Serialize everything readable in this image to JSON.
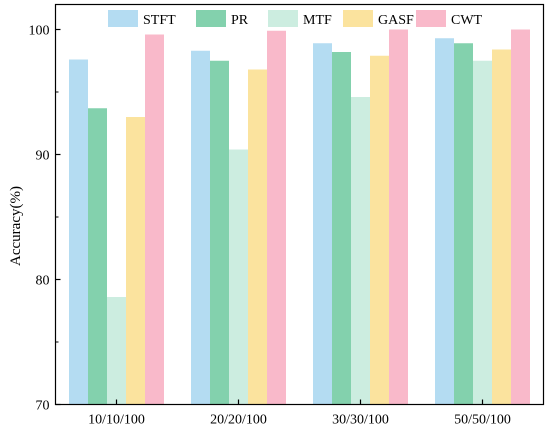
{
  "chart_data": {
    "type": "bar",
    "title": "",
    "xlabel": "",
    "ylabel": "Accuracy(%)",
    "ylim": [
      70,
      102
    ],
    "yticks": [
      70,
      80,
      90,
      100
    ],
    "grid": false,
    "legend_position": "top",
    "categories": [
      "10/10/100",
      "20/20/100",
      "30/30/100",
      "50/50/100"
    ],
    "series": [
      {
        "name": "STFT",
        "color": "#b4dcf2",
        "values": [
          97.6,
          98.3,
          98.9,
          99.3
        ]
      },
      {
        "name": "PR",
        "color": "#83d1ad",
        "values": [
          93.7,
          97.5,
          98.2,
          98.9
        ]
      },
      {
        "name": "MTF",
        "color": "#ccede0",
        "values": [
          78.6,
          90.4,
          94.6,
          97.5
        ]
      },
      {
        "name": "GASF",
        "color": "#fbe39e",
        "values": [
          93.0,
          96.8,
          97.9,
          98.4
        ]
      },
      {
        "name": "CWT",
        "color": "#f9b9ca",
        "values": [
          99.6,
          99.9,
          100.0,
          100.0
        ]
      }
    ]
  }
}
